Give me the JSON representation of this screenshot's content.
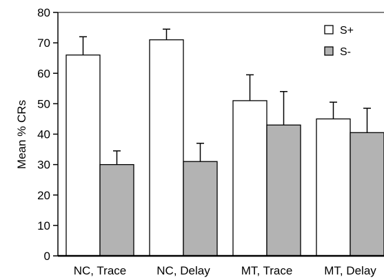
{
  "chart_data": {
    "type": "bar",
    "categories": [
      "NC, Trace",
      "NC, Delay",
      "MT, Trace",
      "MT, Delay"
    ],
    "series": [
      {
        "name": "S+",
        "values": [
          66,
          71,
          51,
          45
        ],
        "errors": [
          6,
          3.5,
          8.5,
          5.5
        ],
        "color": "#ffffff"
      },
      {
        "name": "S-",
        "values": [
          30,
          31,
          43,
          40.5
        ],
        "errors": [
          4.5,
          6,
          11,
          8
        ],
        "color": "#b3b3b3"
      }
    ],
    "ylabel": "Mean  % CRs",
    "xlabel": "",
    "ylim": [
      0,
      80
    ],
    "yticks": [
      0,
      10,
      20,
      30,
      40,
      50,
      60,
      70,
      80
    ],
    "grid": false,
    "legend_position": "top-right"
  }
}
